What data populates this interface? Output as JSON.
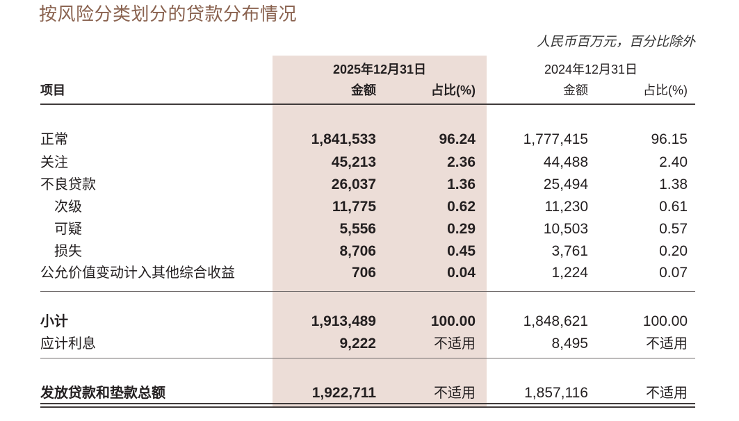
{
  "title": "按风险分类划分的贷款分布情况",
  "unit_note": "人民币百万元，百分比除外",
  "colors": {
    "title": "#8A6350",
    "highlight_band": "#ECDDD7"
  },
  "header": {
    "item_label": "项目",
    "current": {
      "date": "2025年12月31日",
      "amount_label": "金额",
      "ratio_label": "占比(%)"
    },
    "previous": {
      "date": "2024年12月31日",
      "amount_label": "金额",
      "ratio_label": "占比(%)"
    }
  },
  "rows": [
    {
      "label": "正常",
      "cur_amount": "1,841,533",
      "cur_ratio": "96.24",
      "prev_amount": "1,777,415",
      "prev_ratio": "96.15"
    },
    {
      "label": "关注",
      "cur_amount": "45,213",
      "cur_ratio": "2.36",
      "prev_amount": "44,488",
      "prev_ratio": "2.40"
    },
    {
      "label": "不良贷款",
      "cur_amount": "26,037",
      "cur_ratio": "1.36",
      "prev_amount": "25,494",
      "prev_ratio": "1.38"
    },
    {
      "label": "次级",
      "cur_amount": "11,775",
      "cur_ratio": "0.62",
      "prev_amount": "11,230",
      "prev_ratio": "0.61"
    },
    {
      "label": "可疑",
      "cur_amount": "5,556",
      "cur_ratio": "0.29",
      "prev_amount": "10,503",
      "prev_ratio": "0.57"
    },
    {
      "label": "损失",
      "cur_amount": "8,706",
      "cur_ratio": "0.45",
      "prev_amount": "3,761",
      "prev_ratio": "0.20"
    },
    {
      "label": "公允价值变动计入其他综合收益",
      "cur_amount": "706",
      "cur_ratio": "0.04",
      "prev_amount": "1,224",
      "prev_ratio": "0.07"
    },
    {
      "label": "小计",
      "cur_amount": "1,913,489",
      "cur_ratio": "100.00",
      "prev_amount": "1,848,621",
      "prev_ratio": "100.00"
    },
    {
      "label": "应计利息",
      "cur_amount": "9,222",
      "cur_ratio": "不适用",
      "prev_amount": "8,495",
      "prev_ratio": "不适用"
    },
    {
      "label": "发放贷款和垫款总额",
      "cur_amount": "1,922,711",
      "cur_ratio": "不适用",
      "prev_amount": "1,857,116",
      "prev_ratio": "不适用"
    }
  ]
}
